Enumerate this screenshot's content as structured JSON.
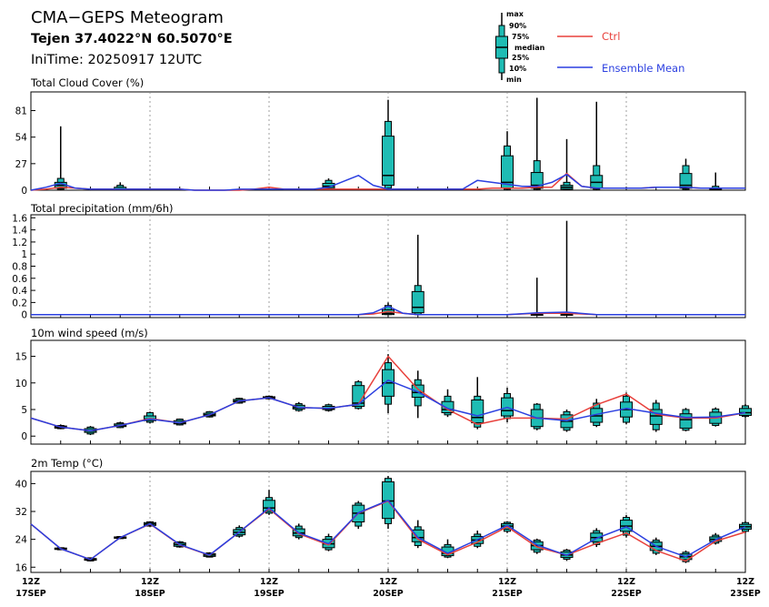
{
  "header": {
    "title": "CMA−GEPS Meteogram",
    "location": "Tejen 37.4022°N 60.5070°E",
    "init_time": "IniTime: 20250917 12UTC"
  },
  "legend": {
    "box_labels": [
      "max",
      "90%",
      "75%",
      "median",
      "25%",
      "10%",
      "min"
    ],
    "ctrl_label": "Ctrl",
    "mean_label": "Ensemble Mean",
    "colors": {
      "ctrl": "#e8413c",
      "mean": "#2b3fe0",
      "box": "#1fbcb4"
    }
  },
  "x_axis": {
    "ticks": [
      {
        "top": "12Z",
        "bottom": "17SEP"
      },
      {
        "top": "12Z",
        "bottom": "18SEP"
      },
      {
        "top": "12Z",
        "bottom": "19SEP"
      },
      {
        "top": "12Z",
        "bottom": "20SEP"
      },
      {
        "top": "12Z",
        "bottom": "21SEP"
      },
      {
        "top": "12Z",
        "bottom": "22SEP"
      },
      {
        "top": "12Z",
        "bottom": "23SEP"
      }
    ]
  },
  "chart_data": [
    {
      "type": "box",
      "title": "Total Cloud Cover (%)",
      "ylim": [
        0,
        100
      ],
      "yticks": [
        "0",
        "27",
        "54",
        "81"
      ],
      "x": [
        0,
        0.5,
        1,
        1.5,
        2,
        2.5,
        3,
        3.5,
        4,
        4.5,
        5,
        5.5,
        6,
        6.5,
        7,
        7.5,
        8,
        8.5,
        9,
        9.5,
        10,
        10.5,
        11,
        11.5,
        12,
        12.5,
        13,
        13.5,
        14,
        14.5,
        15,
        15.5,
        16,
        16.5,
        17,
        17.5,
        18,
        18.5,
        19,
        19.5,
        20,
        20.5,
        21,
        21.5,
        22,
        22.5,
        23,
        23.5,
        24
      ],
      "ctrl": [
        0,
        1,
        3,
        2,
        1,
        1,
        1,
        1,
        1,
        1,
        1,
        0,
        0,
        0,
        0,
        1,
        3,
        1,
        1,
        1,
        1,
        1,
        1,
        1,
        1,
        1,
        1,
        1,
        1,
        1,
        1,
        2,
        2,
        2,
        3,
        3,
        17,
        4,
        2,
        2,
        2,
        2,
        3,
        3,
        3,
        2,
        2,
        2,
        2
      ],
      "mean": [
        0,
        3,
        7,
        2,
        1,
        1,
        1,
        1,
        1,
        1,
        1,
        0,
        0,
        0,
        1,
        1,
        1,
        1,
        1,
        1,
        3,
        9,
        15,
        5,
        1,
        1,
        1,
        1,
        1,
        1,
        10,
        8,
        6,
        4,
        4,
        8,
        16,
        4,
        2,
        2,
        2,
        2,
        3,
        3,
        3,
        2,
        2,
        2,
        2
      ],
      "boxes": [
        {
          "x": 1,
          "min": 0,
          "p10": 1,
          "p25": 2,
          "med": 5,
          "p75": 8,
          "p90": 12,
          "max": 65
        },
        {
          "x": 3,
          "min": 0,
          "p10": 0,
          "p25": 0,
          "med": 1,
          "p75": 3,
          "p90": 5,
          "max": 8
        },
        {
          "x": 10,
          "min": 0,
          "p10": 1,
          "p25": 2,
          "med": 4,
          "p75": 7,
          "p90": 10,
          "max": 12
        },
        {
          "x": 12,
          "min": 0,
          "p10": 2,
          "p25": 5,
          "med": 15,
          "p75": 55,
          "p90": 70,
          "max": 92
        },
        {
          "x": 16,
          "min": 0,
          "p10": 1,
          "p25": 2,
          "med": 8,
          "p75": 35,
          "p90": 45,
          "max": 60
        },
        {
          "x": 17,
          "min": 0,
          "p10": 1,
          "p25": 2,
          "med": 5,
          "p75": 18,
          "p90": 30,
          "max": 94
        },
        {
          "x": 18,
          "min": 0,
          "p10": 1,
          "p25": 1,
          "med": 3,
          "p75": 5,
          "p90": 8,
          "max": 52
        },
        {
          "x": 19,
          "min": 0,
          "p10": 1,
          "p25": 2,
          "med": 8,
          "p75": 15,
          "p90": 25,
          "max": 90
        },
        {
          "x": 22,
          "min": 0,
          "p10": 1,
          "p25": 2,
          "med": 5,
          "p75": 17,
          "p90": 25,
          "max": 32
        },
        {
          "x": 23,
          "min": 0,
          "p10": 0,
          "p25": 1,
          "med": 1,
          "p75": 2,
          "p90": 4,
          "max": 18
        }
      ]
    },
    {
      "type": "box",
      "title": "Total precipitation (mm/6h)",
      "ylim": [
        -0.05,
        1.65
      ],
      "yticks": [
        "0",
        "0.2",
        "0.4",
        "0.6",
        "0.8",
        "1",
        "1.2",
        "1.4",
        "1.6"
      ],
      "x": [
        0,
        1,
        2,
        3,
        4,
        5,
        6,
        7,
        8,
        9,
        10,
        11,
        11.5,
        12,
        12.5,
        13,
        14,
        15,
        16,
        17,
        18,
        19,
        20,
        21,
        22,
        23,
        24
      ],
      "ctrl": [
        0,
        0,
        0,
        0,
        0,
        0,
        0,
        0,
        0,
        0,
        0,
        0,
        0.01,
        0.05,
        0.02,
        0,
        0,
        0,
        0,
        0.02,
        0.02,
        0,
        0,
        0,
        0,
        0,
        0
      ],
      "mean": [
        0,
        0,
        0,
        0,
        0,
        0,
        0,
        0,
        0,
        0,
        0,
        0,
        0.03,
        0.14,
        0.02,
        0,
        0,
        0,
        0,
        0.03,
        0.04,
        0,
        0,
        0,
        0,
        0,
        0
      ],
      "boxes": [
        {
          "x": 12,
          "min": 0,
          "p10": 0,
          "p25": 0,
          "med": 0.02,
          "p75": 0.08,
          "p90": 0.15,
          "max": 0.2
        },
        {
          "x": 13,
          "min": 0,
          "p10": 0,
          "p25": 0.03,
          "med": 0.12,
          "p75": 0.38,
          "p90": 0.48,
          "max": 1.32
        },
        {
          "x": 17,
          "min": 0,
          "p10": 0,
          "p25": 0,
          "med": 0,
          "p75": 0,
          "p90": 0.01,
          "max": 0.61
        },
        {
          "x": 18,
          "min": 0,
          "p10": 0,
          "p25": 0,
          "med": 0,
          "p75": 0,
          "p90": 0.02,
          "max": 1.55
        }
      ]
    },
    {
      "type": "box",
      "title": "10m wind speed (m/s)",
      "ylim": [
        -1.5,
        18
      ],
      "yticks": [
        "0",
        "5",
        "10",
        "15"
      ],
      "x": [
        0,
        1,
        2,
        3,
        4,
        5,
        6,
        7,
        8,
        9,
        10,
        11,
        12,
        13,
        14,
        15,
        16,
        17,
        18,
        19,
        20,
        21,
        22,
        23,
        24
      ],
      "ctrl": [
        3.4,
        1.7,
        1.0,
        2.0,
        3.3,
        2.5,
        4.0,
        6.6,
        7.2,
        5.4,
        5.2,
        6.0,
        15.0,
        8.8,
        5.0,
        2.2,
        3.4,
        3.4,
        3.2,
        5.9,
        7.9,
        4.1,
        3.4,
        3.4,
        4.4
      ],
      "mean": [
        3.4,
        1.7,
        1.0,
        2.0,
        3.2,
        2.5,
        4.0,
        6.6,
        7.2,
        5.4,
        5.2,
        6.0,
        10.5,
        8.3,
        5.2,
        3.8,
        5.4,
        3.4,
        2.9,
        4.1,
        5.2,
        4.3,
        3.5,
        3.6,
        4.4
      ],
      "boxes": [
        {
          "x": 1,
          "min": 1.3,
          "p10": 1.4,
          "p25": 1.5,
          "med": 1.7,
          "p75": 1.9,
          "p90": 2.0,
          "max": 2.2
        },
        {
          "x": 2,
          "min": 0.2,
          "p10": 0.4,
          "p25": 0.7,
          "med": 1.0,
          "p75": 1.4,
          "p90": 1.7,
          "max": 1.9
        },
        {
          "x": 3,
          "min": 1.5,
          "p10": 1.6,
          "p25": 1.8,
          "med": 2.0,
          "p75": 2.3,
          "p90": 2.5,
          "max": 2.7
        },
        {
          "x": 4,
          "min": 2.4,
          "p10": 2.6,
          "p25": 2.9,
          "med": 3.2,
          "p75": 3.8,
          "p90": 4.4,
          "max": 4.6
        },
        {
          "x": 5,
          "min": 2.0,
          "p10": 2.1,
          "p25": 2.3,
          "med": 2.5,
          "p75": 2.9,
          "p90": 3.2,
          "max": 3.3
        },
        {
          "x": 6,
          "min": 3.5,
          "p10": 3.6,
          "p25": 3.8,
          "med": 4.0,
          "p75": 4.3,
          "p90": 4.6,
          "max": 4.7
        },
        {
          "x": 7,
          "min": 6.1,
          "p10": 6.2,
          "p25": 6.4,
          "med": 6.6,
          "p75": 6.9,
          "p90": 7.1,
          "max": 7.2
        },
        {
          "x": 8,
          "min": 6.9,
          "p10": 7.0,
          "p25": 7.1,
          "med": 7.2,
          "p75": 7.4,
          "p90": 7.5,
          "max": 7.6
        },
        {
          "x": 9,
          "min": 4.6,
          "p10": 4.8,
          "p25": 5.1,
          "med": 5.4,
          "p75": 5.8,
          "p90": 6.1,
          "max": 6.4
        },
        {
          "x": 10,
          "min": 4.6,
          "p10": 4.8,
          "p25": 5.0,
          "med": 5.2,
          "p75": 5.6,
          "p90": 5.9,
          "max": 6.1
        },
        {
          "x": 11,
          "min": 5.0,
          "p10": 5.2,
          "p25": 5.6,
          "med": 6.2,
          "p75": 9.5,
          "p90": 10.2,
          "max": 10.5
        },
        {
          "x": 12,
          "min": 4.3,
          "p10": 6.0,
          "p25": 7.5,
          "med": 10.0,
          "p75": 12.5,
          "p90": 13.8,
          "max": 15.4
        },
        {
          "x": 13,
          "min": 3.4,
          "p10": 5.7,
          "p25": 7.3,
          "med": 8.2,
          "p75": 9.6,
          "p90": 10.6,
          "max": 12.3
        },
        {
          "x": 14,
          "min": 3.6,
          "p10": 4.0,
          "p25": 4.4,
          "med": 5.0,
          "p75": 6.5,
          "p90": 7.5,
          "max": 8.8
        },
        {
          "x": 15,
          "min": 1.3,
          "p10": 1.7,
          "p25": 2.5,
          "med": 3.5,
          "p75": 6.8,
          "p90": 7.5,
          "max": 11.1
        },
        {
          "x": 16,
          "min": 2.6,
          "p10": 3.3,
          "p25": 3.8,
          "med": 4.8,
          "p75": 7.2,
          "p90": 8.0,
          "max": 9.1
        },
        {
          "x": 17,
          "min": 1.1,
          "p10": 1.4,
          "p25": 1.8,
          "med": 3.4,
          "p75": 5.0,
          "p90": 6.0,
          "max": 6.2
        },
        {
          "x": 18,
          "min": 0.8,
          "p10": 1.1,
          "p25": 1.6,
          "med": 2.8,
          "p75": 4.0,
          "p90": 4.6,
          "max": 5.0
        },
        {
          "x": 19,
          "min": 1.7,
          "p10": 2.0,
          "p25": 2.6,
          "med": 3.8,
          "p75": 5.2,
          "p90": 6.2,
          "max": 7.0
        },
        {
          "x": 20,
          "min": 2.2,
          "p10": 2.6,
          "p25": 3.6,
          "med": 5.0,
          "p75": 6.4,
          "p90": 7.5,
          "max": 8.2
        },
        {
          "x": 21,
          "min": 0.8,
          "p10": 1.2,
          "p25": 2.2,
          "med": 3.8,
          "p75": 5.0,
          "p90": 6.2,
          "max": 6.8
        },
        {
          "x": 22,
          "min": 0.9,
          "p10": 1.1,
          "p25": 1.5,
          "med": 3.1,
          "p75": 4.2,
          "p90": 5.0,
          "max": 5.3
        },
        {
          "x": 23,
          "min": 1.8,
          "p10": 2.0,
          "p25": 2.4,
          "med": 3.6,
          "p75": 4.5,
          "p90": 5.1,
          "max": 5.4
        },
        {
          "x": 24,
          "min": 3.5,
          "p10": 3.7,
          "p25": 3.9,
          "med": 4.4,
          "p75": 5.2,
          "p90": 5.7,
          "max": 6.0
        }
      ]
    },
    {
      "type": "box",
      "title": "2m Temp (°C)",
      "ylim": [
        14.5,
        43.5
      ],
      "yticks": [
        "16",
        "24",
        "32",
        "40"
      ],
      "x": [
        0,
        1,
        2,
        3,
        4,
        5,
        6,
        7,
        8,
        9,
        10,
        11,
        12,
        13,
        14,
        15,
        16,
        17,
        18,
        19,
        20,
        21,
        22,
        23,
        24
      ],
      "ctrl": [
        28.4,
        21.3,
        18.2,
        24.5,
        28.4,
        22.4,
        19.4,
        26.1,
        32.8,
        25.6,
        22.4,
        31.5,
        35.0,
        24.0,
        19.6,
        23.2,
        27.6,
        21.8,
        19.5,
        22.8,
        25.8,
        20.8,
        17.8,
        23.5,
        26.1
      ],
      "mean": [
        28.4,
        21.3,
        18.2,
        24.5,
        28.5,
        22.5,
        19.5,
        26.1,
        33.0,
        25.8,
        22.7,
        31.6,
        35.2,
        24.5,
        20.0,
        23.9,
        28.0,
        22.4,
        19.4,
        24.3,
        27.6,
        22.0,
        19.0,
        23.9,
        27.6
      ],
      "boxes": [
        {
          "x": 1,
          "min": 20.9,
          "p10": 21.0,
          "p25": 21.1,
          "med": 21.3,
          "p75": 21.5,
          "p90": 21.6,
          "max": 21.7
        },
        {
          "x": 2,
          "min": 17.7,
          "p10": 17.8,
          "p25": 18.0,
          "med": 18.2,
          "p75": 18.5,
          "p90": 18.7,
          "max": 18.8
        },
        {
          "x": 3,
          "min": 24.1,
          "p10": 24.2,
          "p25": 24.3,
          "med": 24.5,
          "p75": 24.7,
          "p90": 24.8,
          "max": 24.9
        },
        {
          "x": 4,
          "min": 27.6,
          "p10": 27.8,
          "p25": 28.0,
          "med": 28.4,
          "p75": 28.8,
          "p90": 29.0,
          "max": 29.2
        },
        {
          "x": 5,
          "min": 21.6,
          "p10": 21.8,
          "p25": 22.0,
          "med": 22.5,
          "p75": 23.0,
          "p90": 23.3,
          "max": 23.5
        },
        {
          "x": 6,
          "min": 18.8,
          "p10": 18.9,
          "p25": 19.1,
          "med": 19.5,
          "p75": 19.9,
          "p90": 20.1,
          "max": 20.3
        },
        {
          "x": 7,
          "min": 24.5,
          "p10": 24.9,
          "p25": 25.3,
          "med": 26.0,
          "p75": 26.8,
          "p90": 27.4,
          "max": 28.0
        },
        {
          "x": 8,
          "min": 31.0,
          "p10": 31.5,
          "p25": 32.0,
          "med": 33.0,
          "p75": 35.2,
          "p90": 36.0,
          "max": 38.2
        },
        {
          "x": 9,
          "min": 24.0,
          "p10": 24.5,
          "p25": 25.0,
          "med": 25.8,
          "p75": 27.0,
          "p90": 27.8,
          "max": 28.5
        },
        {
          "x": 10,
          "min": 20.6,
          "p10": 21.0,
          "p25": 21.6,
          "med": 22.7,
          "p75": 24.0,
          "p90": 24.8,
          "max": 25.6
        },
        {
          "x": 11,
          "min": 27.0,
          "p10": 27.8,
          "p25": 29.0,
          "med": 31.5,
          "p75": 33.8,
          "p90": 34.4,
          "max": 35.0
        },
        {
          "x": 12,
          "min": 27.0,
          "p10": 28.5,
          "p25": 30.0,
          "med": 35.0,
          "p75": 40.5,
          "p90": 41.5,
          "max": 42.2
        },
        {
          "x": 13,
          "min": 21.5,
          "p10": 22.2,
          "p25": 23.3,
          "med": 24.5,
          "p75": 26.7,
          "p90": 27.6,
          "max": 29.5
        },
        {
          "x": 14,
          "min": 18.6,
          "p10": 18.9,
          "p25": 19.3,
          "med": 20.0,
          "p75": 21.8,
          "p90": 22.5,
          "max": 24.0
        },
        {
          "x": 15,
          "min": 21.5,
          "p10": 22.0,
          "p25": 22.8,
          "med": 23.8,
          "p75": 24.8,
          "p90": 25.5,
          "max": 26.5
        },
        {
          "x": 16,
          "min": 25.8,
          "p10": 26.3,
          "p25": 26.9,
          "med": 27.8,
          "p75": 28.5,
          "p90": 28.9,
          "max": 29.2
        },
        {
          "x": 17,
          "min": 19.8,
          "p10": 20.3,
          "p25": 21.0,
          "med": 22.2,
          "p75": 23.3,
          "p90": 23.8,
          "max": 24.2
        },
        {
          "x": 18,
          "min": 17.8,
          "p10": 18.3,
          "p25": 18.8,
          "med": 19.5,
          "p75": 20.4,
          "p90": 20.9,
          "max": 21.3
        },
        {
          "x": 19,
          "min": 21.8,
          "p10": 22.5,
          "p25": 23.3,
          "med": 24.5,
          "p75": 25.8,
          "p90": 26.5,
          "max": 27.2
        },
        {
          "x": 20,
          "min": 24.5,
          "p10": 25.2,
          "p25": 26.3,
          "med": 27.8,
          "p75": 29.5,
          "p90": 30.3,
          "max": 31.0
        },
        {
          "x": 21,
          "min": 19.5,
          "p10": 20.0,
          "p25": 20.8,
          "med": 22.0,
          "p75": 23.2,
          "p90": 23.8,
          "max": 24.5
        },
        {
          "x": 22,
          "min": 17.2,
          "p10": 17.6,
          "p25": 18.2,
          "med": 19.0,
          "p75": 19.8,
          "p90": 20.3,
          "max": 20.8
        },
        {
          "x": 23,
          "min": 22.5,
          "p10": 22.9,
          "p25": 23.4,
          "med": 24.0,
          "p75": 24.7,
          "p90": 25.2,
          "max": 25.8
        },
        {
          "x": 24,
          "min": 25.8,
          "p10": 26.3,
          "p25": 26.9,
          "med": 27.6,
          "p75": 28.3,
          "p90": 28.8,
          "max": 29.2
        }
      ]
    }
  ]
}
